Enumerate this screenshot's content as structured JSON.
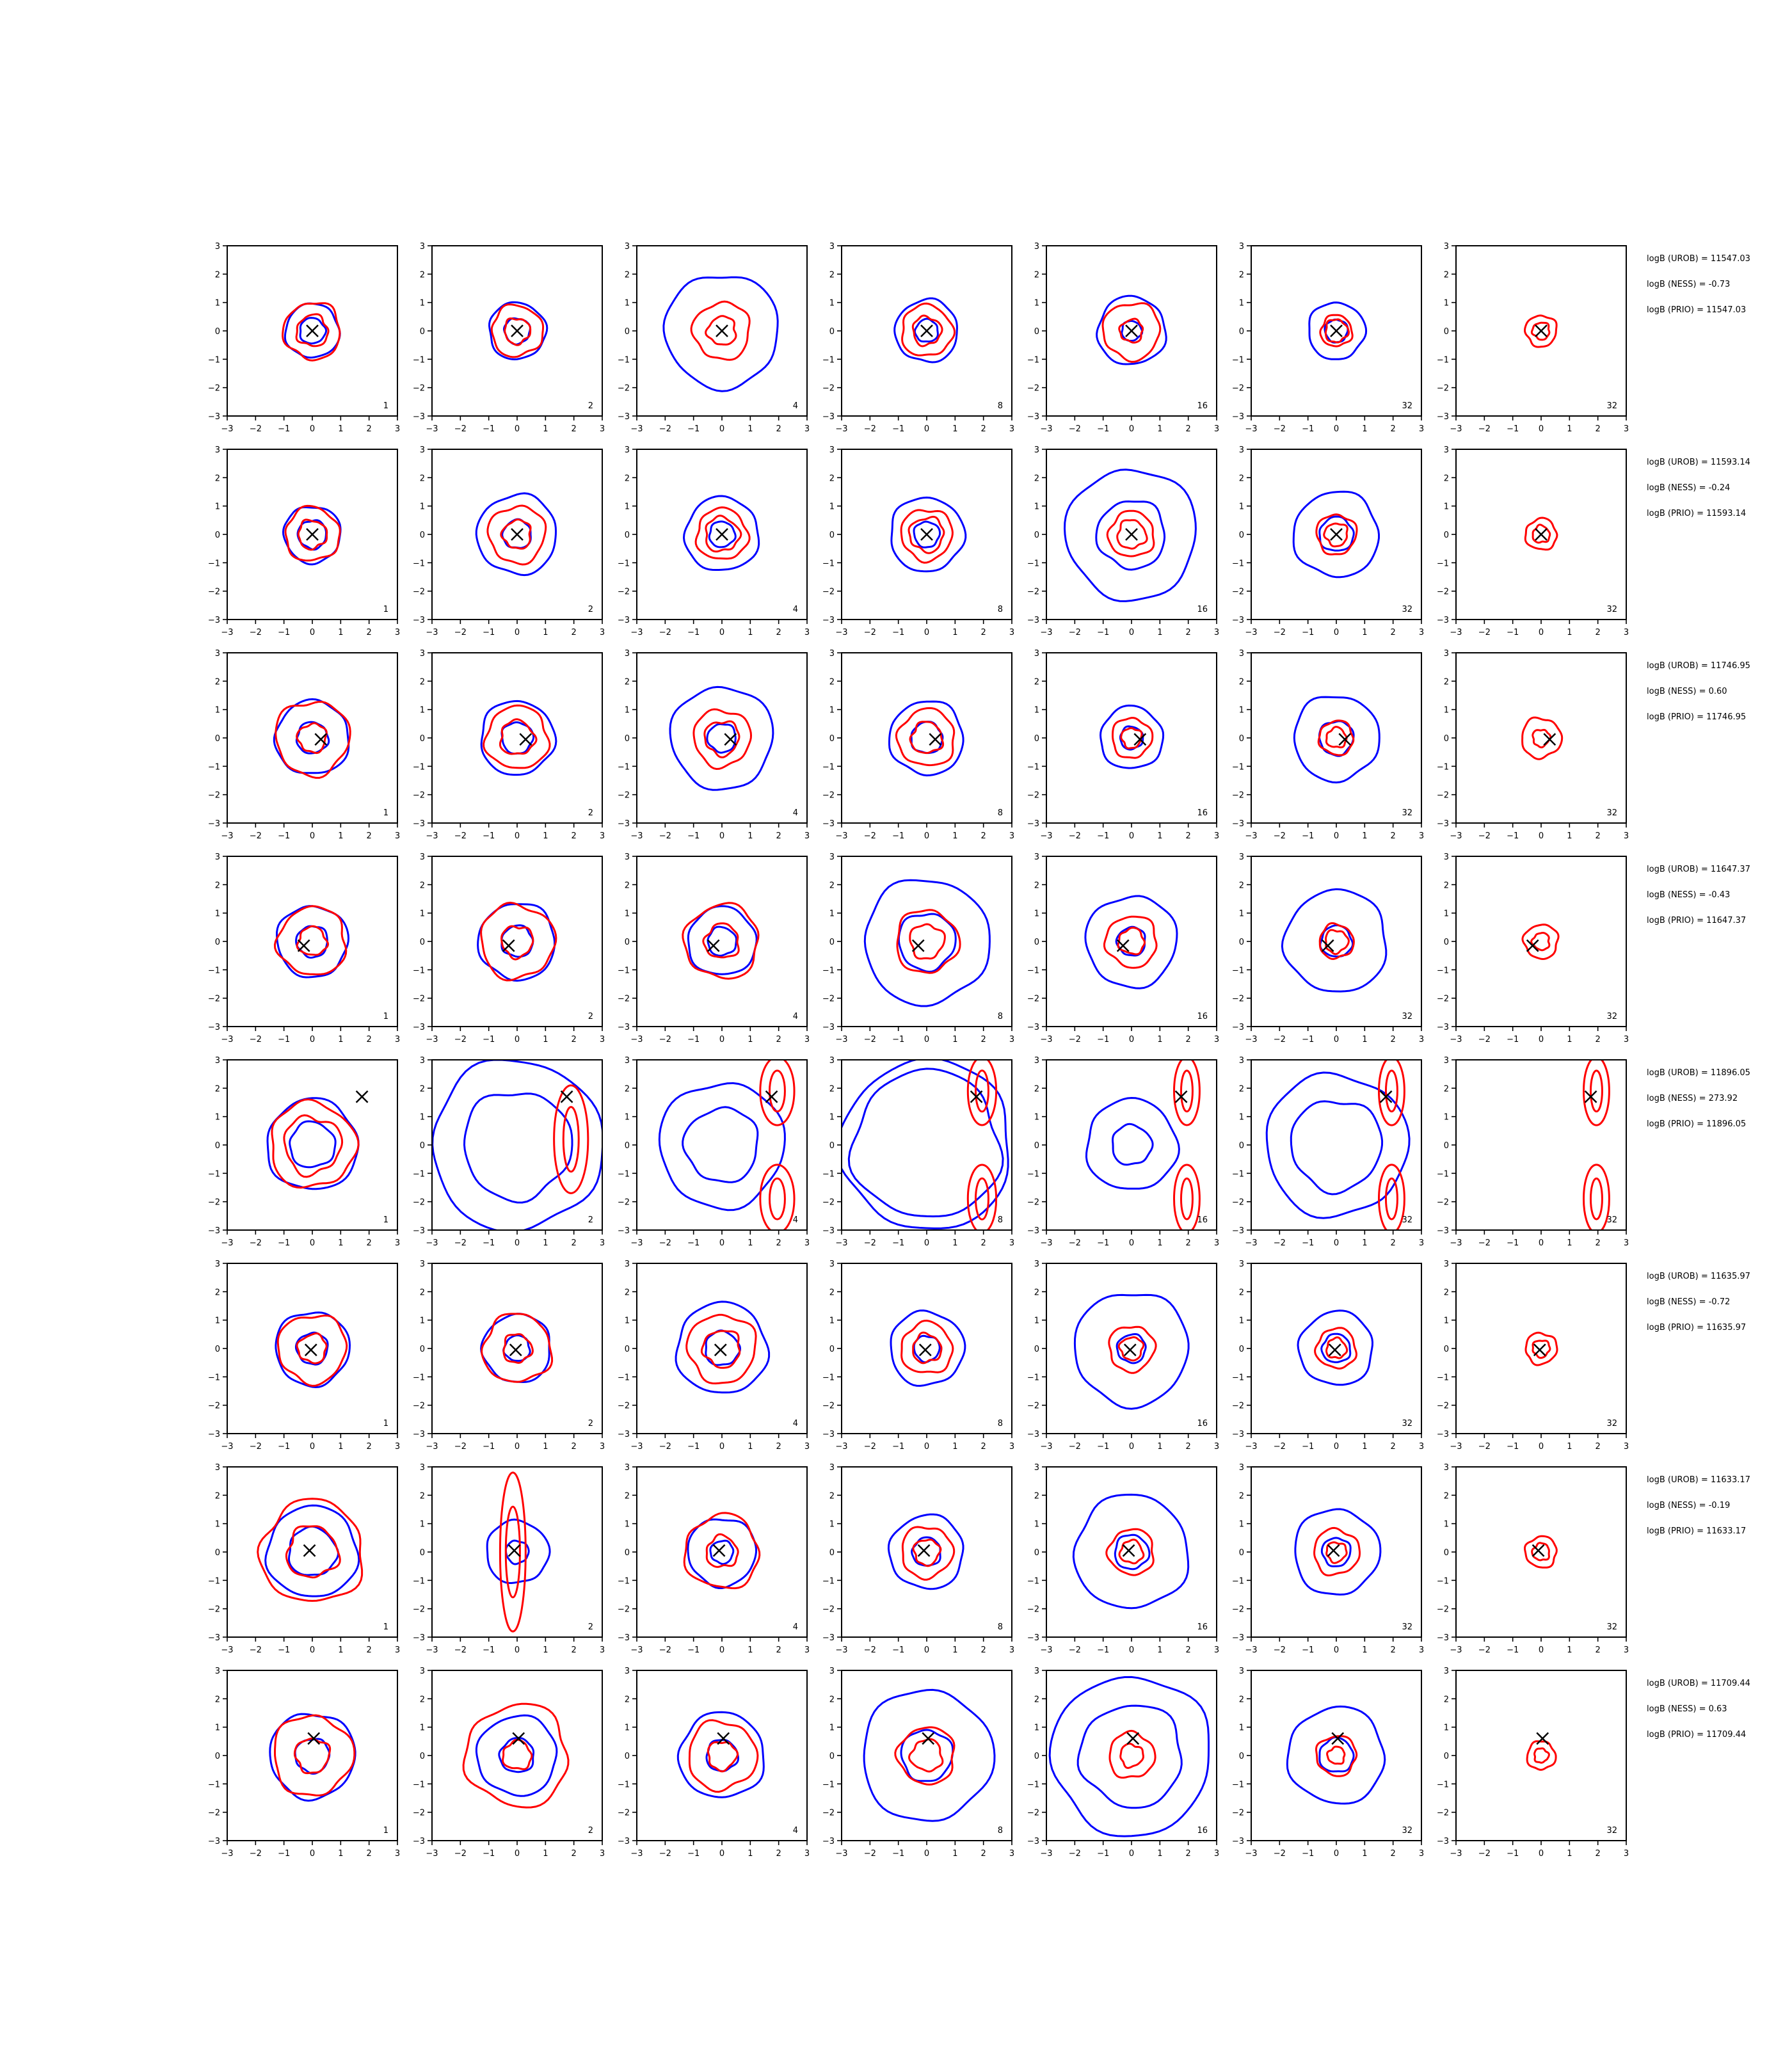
{
  "figure": {
    "contour_colors": {
      "uniform_baseline": "#0000ff",
      "adaptive": "#ff0000",
      "true_point": "#000000"
    }
  },
  "chart_data": {
    "type": "contour-grid",
    "xlim": [
      -3,
      3
    ],
    "ylim": [
      -3,
      3
    ],
    "x_ticks": [
      "−3",
      "−2",
      "−1",
      "0",
      "1",
      "2",
      "3"
    ],
    "y_ticks": [
      "3",
      "2",
      "1",
      "0",
      "−1",
      "−2",
      "−3"
    ],
    "column_labels": [
      "1",
      "2",
      "4",
      "8",
      "16",
      "32",
      "32"
    ],
    "grid": false,
    "rows": [
      {
        "true_point": [
          0,
          0
        ],
        "logB_UROB": "logB (UROB) = 11547.03",
        "logB_NESS": "logB (NESS) = -0.73",
        "logB_PRIO": "logB (PRIO) = 11547.03",
        "blue_radii": [
          [
            0.95,
            0.45
          ],
          [
            1.0,
            0.45
          ],
          [
            2.0,
            0.0
          ],
          [
            1.1,
            0.4
          ],
          [
            1.2,
            0.35
          ],
          [
            1.0,
            0.4
          ],
          [
            0,
            0
          ]
        ],
        "red_radii": [
          [
            1.0,
            0.55
          ],
          [
            0.9,
            0.45
          ],
          [
            1.0,
            0.5
          ],
          [
            0.9,
            0.5
          ],
          [
            1.0,
            0.4
          ],
          [
            0.55,
            0.4
          ],
          [
            0.55,
            0.3
          ]
        ]
      },
      {
        "true_point": [
          0,
          0
        ],
        "logB_UROB": "logB (UROB) = 11593.14",
        "logB_NESS": "logB (NESS) = -0.24",
        "logB_PRIO": "logB (PRIO) = 11593.14",
        "blue_radii": [
          [
            1.0,
            0.5
          ],
          [
            1.4,
            0.5
          ],
          [
            1.3,
            0.45
          ],
          [
            1.3,
            0.45
          ],
          [
            2.3,
            1.2
          ],
          [
            1.5,
            0.6
          ],
          [
            0,
            0
          ]
        ],
        "red_radii": [
          [
            0.95,
            0.5
          ],
          [
            1.0,
            0.5
          ],
          [
            0.9,
            0.6
          ],
          [
            0.9,
            0.6
          ],
          [
            0.8,
            0.5
          ],
          [
            0.7,
            0.4
          ],
          [
            0.55,
            0.3
          ]
        ]
      },
      {
        "true_point": [
          0.3,
          -0.05
        ],
        "logB_UROB": "logB (UROB) = 11746.95",
        "logB_NESS": "logB (NESS) = 0.60",
        "logB_PRIO": "logB (PRIO) = 11746.95",
        "blue_radii": [
          [
            1.3,
            0.55
          ],
          [
            1.3,
            0.55
          ],
          [
            1.8,
            0.5
          ],
          [
            1.3,
            0.55
          ],
          [
            1.1,
            0.4
          ],
          [
            1.5,
            0.6
          ],
          [
            0,
            0
          ]
        ],
        "red_radii": [
          [
            1.3,
            0.5
          ],
          [
            1.1,
            0.6
          ],
          [
            1.0,
            0.6
          ],
          [
            1.0,
            0.55
          ],
          [
            0.7,
            0.35
          ],
          [
            0.6,
            0.35
          ],
          [
            0.7,
            0.3
          ]
        ]
      },
      {
        "true_point": [
          -0.3,
          -0.15
        ],
        "logB_UROB": "logB (UROB) = 11647.37",
        "logB_NESS": "logB (NESS) = -0.43",
        "logB_PRIO": "logB (PRIO) = 11647.37",
        "blue_radii": [
          [
            1.25,
            0.55
          ],
          [
            1.35,
            0.55
          ],
          [
            1.2,
            0.5
          ],
          [
            2.2,
            1.0
          ],
          [
            1.6,
            0.5
          ],
          [
            1.8,
            0.55
          ],
          [
            0,
            0
          ]
        ],
        "red_radii": [
          [
            1.2,
            0.5
          ],
          [
            1.3,
            0.55
          ],
          [
            1.3,
            0.6
          ],
          [
            1.1,
            0.6
          ],
          [
            0.9,
            0.45
          ],
          [
            0.6,
            0.4
          ],
          [
            0.6,
            0.3
          ]
        ]
      },
      {
        "true_point": [
          1.75,
          1.7
        ],
        "logB_UROB": "logB (UROB) = 11896.05",
        "logB_NESS": "logB (NESS) = 273.92",
        "logB_PRIO": "logB (PRIO) = 11896.05",
        "blue_radii": [
          [
            1.6,
            0.8
          ],
          [
            3.0,
            1.9
          ],
          [
            2.2,
            1.3
          ],
          [
            3.0,
            2.6
          ],
          [
            1.6,
            0.7
          ],
          [
            2.5,
            1.6
          ],
          [
            0,
            0
          ]
        ],
        "red_radii": [
          [
            1.5,
            1.0
          ],
          [
            0.6,
            0.4
          ],
          [
            0.6,
            0.3
          ],
          [
            0.5,
            0.3
          ],
          [
            0.45,
            0.3
          ],
          [
            0.45,
            0.3
          ],
          [
            0.45,
            0.3
          ]
        ]
      },
      {
        "true_point": [
          -0.05,
          -0.05
        ],
        "logB_UROB": "logB (UROB) = 11635.97",
        "logB_NESS": "logB (NESS) = -0.72",
        "logB_PRIO": "logB (PRIO) = 11635.97",
        "blue_radii": [
          [
            1.3,
            0.55
          ],
          [
            1.2,
            0.45
          ],
          [
            1.6,
            0.6
          ],
          [
            1.3,
            0.45
          ],
          [
            2.0,
            0.5
          ],
          [
            1.3,
            0.5
          ],
          [
            0,
            0
          ]
        ],
        "red_radii": [
          [
            1.2,
            0.5
          ],
          [
            1.2,
            0.5
          ],
          [
            1.2,
            0.65
          ],
          [
            0.9,
            0.5
          ],
          [
            0.8,
            0.4
          ],
          [
            0.7,
            0.35
          ],
          [
            0.55,
            0.3
          ]
        ]
      },
      {
        "true_point": [
          -0.1,
          0.05
        ],
        "logB_UROB": "logB (UROB) = 11633.17",
        "logB_NESS": "logB (NESS) = -0.19",
        "logB_PRIO": "logB (PRIO) = 11633.17",
        "blue_radii": [
          [
            1.6,
            0.85
          ],
          [
            1.1,
            0.4
          ],
          [
            1.2,
            0.4
          ],
          [
            1.3,
            0.5
          ],
          [
            2.0,
            0.6
          ],
          [
            1.5,
            0.5
          ],
          [
            0,
            0
          ]
        ],
        "red_radii": [
          [
            1.8,
            0.9
          ],
          [
            2.8,
            1.5
          ],
          [
            1.3,
            0.55
          ],
          [
            0.9,
            0.45
          ],
          [
            0.8,
            0.4
          ],
          [
            0.8,
            0.35
          ],
          [
            0.55,
            0.3
          ]
        ]
      },
      {
        "true_point": [
          0.05,
          0.6
        ],
        "logB_UROB": "logB (UROB) = 11709.44",
        "logB_NESS": "logB (NESS) = 0.63",
        "logB_PRIO": "logB (PRIO) = 11709.44",
        "blue_radii": [
          [
            1.5,
            0.6
          ],
          [
            1.4,
            0.6
          ],
          [
            1.5,
            0.55
          ],
          [
            2.3,
            0.9
          ],
          [
            2.8,
            1.8
          ],
          [
            1.7,
            0.6
          ],
          [
            0,
            0
          ]
        ],
        "red_radii": [
          [
            1.4,
            0.6
          ],
          [
            1.8,
            0.5
          ],
          [
            1.2,
            0.5
          ],
          [
            1.0,
            0.55
          ],
          [
            0.8,
            0.4
          ],
          [
            0.7,
            0.3
          ],
          [
            0.5,
            0.25
          ]
        ]
      }
    ]
  }
}
